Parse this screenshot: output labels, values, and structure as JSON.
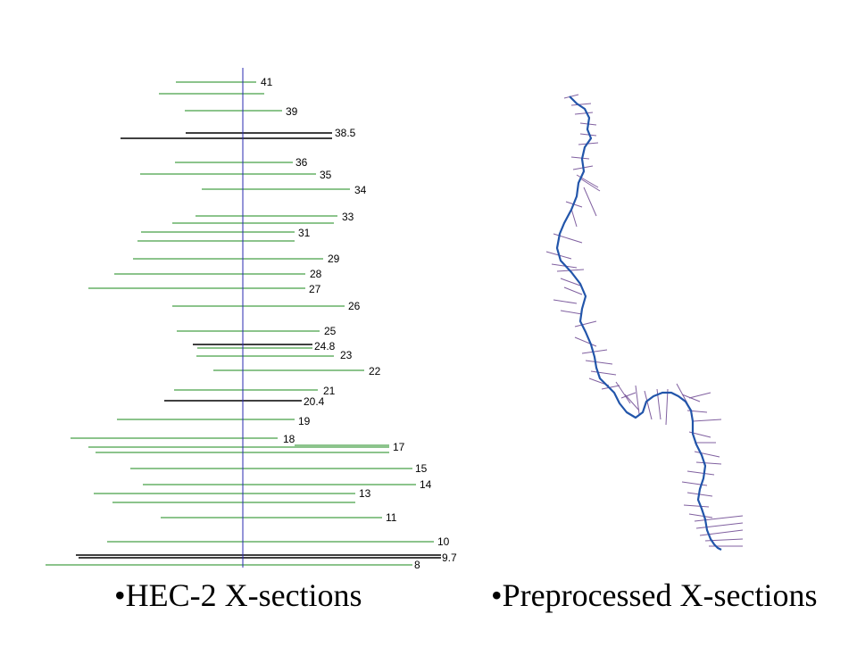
{
  "captions": {
    "left": "•HEC-2 X-sections",
    "right": "•Preprocessed X-sections"
  },
  "hec2_panel": {
    "section_labels": [
      "41",
      "39",
      "38.5",
      "36",
      "35",
      "34",
      "33",
      "31",
      "29",
      "28",
      "27",
      "26",
      "25",
      "24.8",
      "23",
      "22",
      "21",
      "20.4",
      "19",
      "18",
      "17",
      "15",
      "14",
      "13",
      "11",
      "10",
      "9.7",
      "8"
    ]
  },
  "colors": {
    "section_line": "#1a8a1a",
    "highlight_line": "#000000",
    "centerline": "#2a2ab0",
    "river": "#2255aa",
    "preprocessed_section": "#8060a0"
  }
}
